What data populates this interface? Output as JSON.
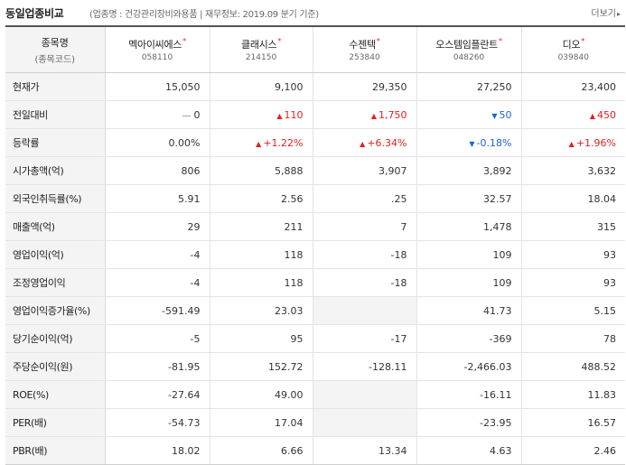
{
  "header": {
    "title": "동일업종비교",
    "subtitle": "(업종명 : 건강관리장비와용품 | 재무정보: 2019.09 분기 기준)",
    "more_label": "더보기"
  },
  "table": {
    "label_header_main": "종목명",
    "label_header_sub": "(종목코드)",
    "companies": [
      {
        "name": "멕아이씨에스",
        "code": "058110"
      },
      {
        "name": "클래시스",
        "code": "214150"
      },
      {
        "name": "수젠텍",
        "code": "253840"
      },
      {
        "name": "오스템임플란트",
        "code": "048260"
      },
      {
        "name": "디오",
        "code": "039840"
      }
    ],
    "rows": [
      {
        "label": "현재가",
        "values": [
          "15,050",
          "9,100",
          "29,350",
          "27,250",
          "23,400"
        ],
        "dirs": [
          "n",
          "n",
          "n",
          "n",
          "n"
        ]
      },
      {
        "label": "전일대비",
        "values": [
          "0",
          "110",
          "1,750",
          "50",
          "450"
        ],
        "dirs": [
          "flat",
          "up",
          "up",
          "down",
          "up"
        ]
      },
      {
        "label": "등락률",
        "values": [
          "0.00%",
          "+1.22%",
          "+6.34%",
          "-0.18%",
          "+1.96%"
        ],
        "dirs": [
          "n",
          "up",
          "up",
          "down",
          "up"
        ]
      },
      {
        "label": "시가총액(억)",
        "values": [
          "806",
          "5,888",
          "3,907",
          "3,892",
          "3,632"
        ],
        "dirs": [
          "n",
          "n",
          "n",
          "n",
          "n"
        ]
      },
      {
        "label": "외국인취득률(%)",
        "values": [
          "5.91",
          "2.56",
          ".25",
          "32.57",
          "18.04"
        ],
        "dirs": [
          "n",
          "n",
          "n",
          "n",
          "n"
        ]
      },
      {
        "label": "매출액(억)",
        "values": [
          "29",
          "211",
          "7",
          "1,478",
          "315"
        ],
        "dirs": [
          "n",
          "n",
          "n",
          "n",
          "n"
        ]
      },
      {
        "label": "영업이익(억)",
        "values": [
          "-4",
          "118",
          "-18",
          "109",
          "93"
        ],
        "dirs": [
          "n",
          "n",
          "n",
          "n",
          "n"
        ]
      },
      {
        "label": "조정영업이익",
        "values": [
          "-4",
          "118",
          "-18",
          "109",
          "93"
        ],
        "dirs": [
          "n",
          "n",
          "n",
          "n",
          "n"
        ]
      },
      {
        "label": "영업이익증가율(%)",
        "values": [
          "-591.49",
          "23.03",
          "",
          "41.73",
          "5.15"
        ],
        "dirs": [
          "n",
          "n",
          "empty",
          "n",
          "n"
        ]
      },
      {
        "label": "당기순이익(억)",
        "values": [
          "-5",
          "95",
          "-17",
          "-369",
          "78"
        ],
        "dirs": [
          "n",
          "n",
          "n",
          "n",
          "n"
        ]
      },
      {
        "label": "주당순이익(원)",
        "values": [
          "-81.95",
          "152.72",
          "-128.11",
          "-2,466.03",
          "488.52"
        ],
        "dirs": [
          "n",
          "n",
          "n",
          "n",
          "n"
        ]
      },
      {
        "label": "ROE(%)",
        "values": [
          "-27.64",
          "49.00",
          "",
          "-16.11",
          "11.83"
        ],
        "dirs": [
          "n",
          "n",
          "empty",
          "n",
          "n"
        ]
      },
      {
        "label": "PER(배)",
        "values": [
          "-54.73",
          "17.04",
          "",
          "-23.95",
          "16.57"
        ],
        "dirs": [
          "n",
          "n",
          "empty",
          "n",
          "n"
        ]
      },
      {
        "label": "PBR(배)",
        "values": [
          "18.02",
          "6.66",
          "13.34",
          "4.63",
          "2.46"
        ],
        "dirs": [
          "n",
          "n",
          "n",
          "n",
          "n"
        ]
      }
    ]
  },
  "colors": {
    "up": "#e0211f",
    "down": "#1a64d8"
  }
}
